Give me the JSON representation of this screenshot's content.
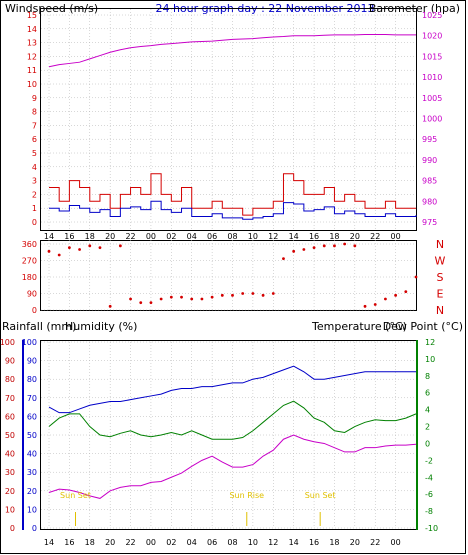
{
  "title": "24 hour graph day : 22 November 2013",
  "colors": {
    "wind": "#d40000",
    "gust": "#d40000",
    "wind_avg": "#0000c8",
    "baro": "#c800c8",
    "rain": "#c00000",
    "humidity": "#0000c8",
    "temperature": "#008000",
    "dewpoint": "#c800c8",
    "sun": "#e0c000",
    "axis_blue": "#0000c8",
    "axis_green": "#008000"
  },
  "time_ticks": [
    "14",
    "16",
    "18",
    "20",
    "22",
    "00",
    "02",
    "04",
    "06",
    "08",
    "10",
    "12",
    "14",
    "16",
    "18",
    "20",
    "22",
    "00"
  ],
  "panel_wind": {
    "left_label": "Windspeed (m/s)",
    "right_label": "Barometer (hpa)",
    "left_ticks": [
      "0",
      "1",
      "2",
      "3",
      "4",
      "5",
      "6",
      "7",
      "8",
      "9",
      "10",
      "11",
      "12",
      "13",
      "14",
      "15"
    ],
    "right_ticks": [
      "975",
      "980",
      "985",
      "990",
      "995",
      "1000",
      "1005",
      "1010",
      "1015",
      "1020",
      "1025"
    ],
    "ylim_left": [
      0,
      15
    ],
    "ylim_right": [
      975,
      1025
    ]
  },
  "panel_dir": {
    "left_ticks": [
      "0",
      "90",
      "180",
      "270",
      "360"
    ],
    "right_ticks": [
      "N",
      "E",
      "S",
      "W",
      "N"
    ],
    "ylim": [
      0,
      360
    ]
  },
  "panel_temp": {
    "left_label_1": "Rainfall (mm)",
    "left_label_2": "Humidity (%)",
    "right_label_1": "Temperature (°C)",
    "right_label_2": "Dew Point (°C)",
    "rain_ticks": [
      "0",
      "10",
      "20",
      "30",
      "40",
      "50",
      "60",
      "70",
      "80",
      "90",
      "100"
    ],
    "hum_ticks": [
      "0",
      "10",
      "20",
      "30",
      "40",
      "50",
      "60",
      "70",
      "80",
      "90",
      "100"
    ],
    "temp_ticks": [
      "-10",
      "-8",
      "-6",
      "-4",
      "-2",
      "0",
      "2",
      "4",
      "6",
      "8",
      "10",
      "12"
    ],
    "ylim_rain": [
      0,
      100
    ],
    "ylim_hum": [
      0,
      100
    ],
    "ylim_temp": [
      -10,
      12
    ],
    "sun_events": [
      {
        "label": "Sun Set",
        "hour": 2.6
      },
      {
        "label": "Sun Rise",
        "hour": 19.4
      },
      {
        "label": "Sun Set",
        "hour": 26.6
      }
    ]
  },
  "chart_data": [
    {
      "type": "line",
      "title": "24 hour graph day : 22 November 2013",
      "xlabel": "",
      "ylabel": "Windspeed (m/s)",
      "x_hours": [
        0,
        1,
        2,
        3,
        4,
        5,
        6,
        7,
        8,
        9,
        10,
        11,
        12,
        13,
        14,
        15,
        16,
        17,
        18,
        19,
        20,
        21,
        22,
        23,
        24,
        25,
        26,
        27,
        28,
        29,
        30,
        31,
        32,
        33,
        34,
        35,
        36
      ],
      "series": [
        {
          "name": "",
          "axis": "right",
          "values": [
            1012.5,
            1013.0,
            1013.3,
            1013.6,
            1014.4,
            1015.2,
            1016.0,
            1016.6,
            1017.1,
            1017.4,
            1017.6,
            1017.9,
            1018.1,
            1018.3,
            1018.5,
            1018.6,
            1018.7,
            1018.9,
            1019.1,
            1019.2,
            1019.3,
            1019.5,
            1019.7,
            1019.8,
            1020.0,
            1020.0,
            1020.0,
            1020.1,
            1020.2,
            1020.2,
            1020.2,
            1020.3,
            1020.3,
            1020.3,
            1020.2,
            1020.2,
            1020.2
          ]
        },
        {
          "name": "",
          "axis": "left",
          "values": [
            2.5,
            1.5,
            3.0,
            2.5,
            1.5,
            2.0,
            1.0,
            2.0,
            2.5,
            2.0,
            3.5,
            2.0,
            1.5,
            2.5,
            1.0,
            1.0,
            1.5,
            1.0,
            1.0,
            0.5,
            1.0,
            1.0,
            1.5,
            3.5,
            3.0,
            2.0,
            2.0,
            2.5,
            1.5,
            2.0,
            1.5,
            1.0,
            1.0,
            1.5,
            1.0,
            1.0,
            1.0
          ]
        },
        {
          "name": "",
          "axis": "left",
          "values": [
            1.0,
            0.8,
            1.2,
            1.0,
            0.7,
            0.9,
            0.4,
            1.0,
            1.1,
            0.9,
            1.5,
            0.9,
            0.7,
            1.0,
            0.4,
            0.4,
            0.6,
            0.3,
            0.3,
            0.2,
            0.3,
            0.4,
            0.6,
            1.4,
            1.3,
            0.8,
            0.9,
            1.1,
            0.6,
            0.8,
            0.6,
            0.4,
            0.4,
            0.6,
            0.4,
            0.4,
            0.5
          ]
        }
      ],
      "ylim": [
        0,
        15
      ],
      "ylim_right": [
        975,
        1025
      ],
      "grid": true
    },
    {
      "type": "scatter",
      "title": "",
      "xlabel": "",
      "ylabel": "",
      "x_hours": [
        0,
        1,
        2,
        3,
        4,
        5,
        6,
        7,
        8,
        9,
        10,
        11,
        12,
        13,
        14,
        15,
        16,
        17,
        18,
        19,
        20,
        21,
        22,
        23,
        24,
        25,
        26,
        27,
        28,
        29,
        30,
        31,
        32,
        33,
        34,
        35,
        36
      ],
      "series": [
        {
          "name": "",
          "values": [
            320,
            300,
            340,
            330,
            350,
            340,
            20,
            350,
            60,
            40,
            40,
            60,
            70,
            70,
            60,
            60,
            70,
            80,
            80,
            90,
            90,
            80,
            90,
            280,
            320,
            330,
            340,
            350,
            350,
            360,
            350,
            20,
            30,
            60,
            80,
            100,
            180
          ]
        }
      ],
      "ylim": [
        0,
        360
      ],
      "grid": true
    },
    {
      "type": "line",
      "title": "",
      "xlabel": "",
      "ylabel": "Humidity (%)",
      "x_hours": [
        0,
        1,
        2,
        3,
        4,
        5,
        6,
        7,
        8,
        9,
        10,
        11,
        12,
        13,
        14,
        15,
        16,
        17,
        18,
        19,
        20,
        21,
        22,
        23,
        24,
        25,
        26,
        27,
        28,
        29,
        30,
        31,
        32,
        33,
        34,
        35,
        36
      ],
      "series": [
        {
          "name": "",
          "axis": "left",
          "values": [
            65,
            62,
            62,
            64,
            66,
            67,
            68,
            68,
            69,
            70,
            71,
            72,
            74,
            75,
            75,
            76,
            76,
            77,
            78,
            78,
            80,
            81,
            83,
            85,
            87,
            84,
            80,
            80,
            81,
            82,
            83,
            84,
            84,
            84,
            84,
            84,
            84
          ]
        },
        {
          "name": "",
          "axis": "right",
          "values": [
            2.0,
            3.0,
            3.5,
            3.5,
            2.0,
            1.0,
            0.8,
            1.2,
            1.5,
            1.0,
            0.8,
            1.0,
            1.3,
            1.0,
            1.5,
            1.0,
            0.5,
            0.5,
            0.5,
            0.7,
            1.5,
            2.5,
            3.5,
            4.5,
            5.0,
            4.2,
            3.0,
            2.5,
            1.5,
            1.3,
            2.0,
            2.5,
            2.8,
            2.7,
            2.7,
            3.0,
            3.5
          ]
        },
        {
          "name": "",
          "axis": "right",
          "values": [
            -5.8,
            -5.4,
            -5.5,
            -5.8,
            -6.2,
            -6.5,
            -5.6,
            -5.2,
            -5.0,
            -5.0,
            -4.6,
            -4.5,
            -4.0,
            -3.5,
            -2.7,
            -2.0,
            -1.5,
            -2.2,
            -2.8,
            -2.8,
            -2.5,
            -1.5,
            -0.8,
            0.5,
            1.0,
            0.5,
            0.2,
            0.0,
            -0.5,
            -1.0,
            -1.0,
            -0.5,
            -0.5,
            -0.3,
            -0.2,
            -0.2,
            -0.1
          ]
        }
      ],
      "ylim": [
        0,
        100
      ],
      "ylim_right": [
        -10,
        12
      ],
      "grid": true
    }
  ]
}
